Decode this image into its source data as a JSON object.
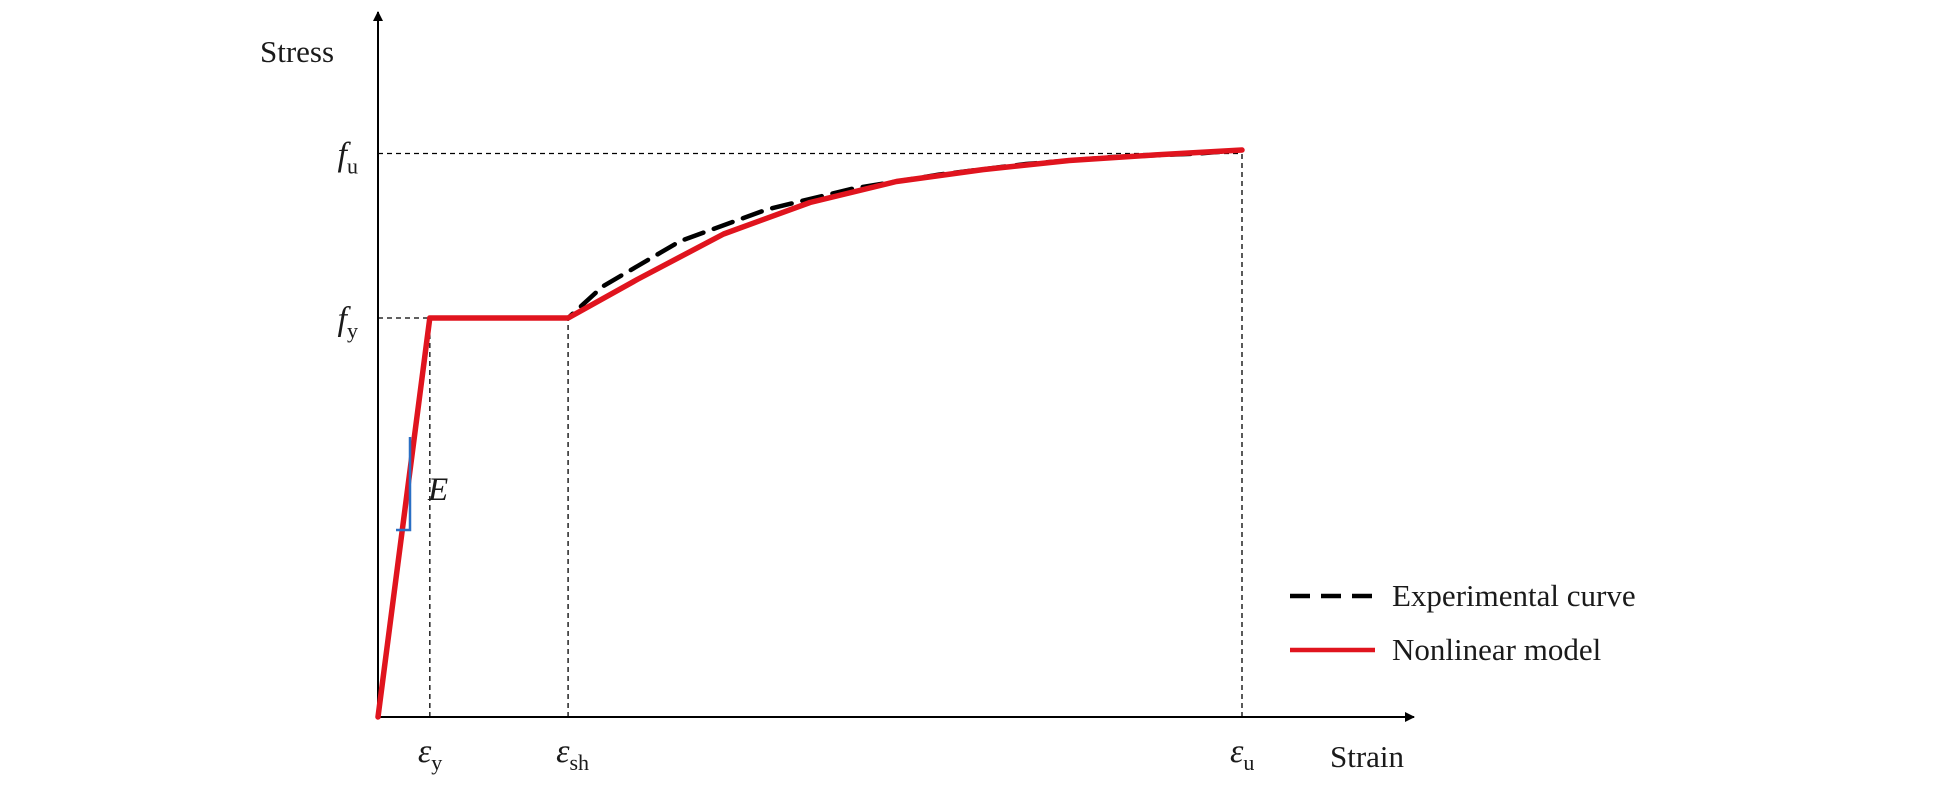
{
  "chart_data": {
    "type": "line",
    "title": "",
    "xlabel": "Strain",
    "ylabel": "Stress",
    "grid": false,
    "legend_position": "right",
    "y_ticks": [
      {
        "main": "f",
        "sub": "y",
        "value": 0.57
      },
      {
        "main": "f",
        "sub": "u",
        "value": 0.805
      }
    ],
    "x_ticks": [
      {
        "main": "ε",
        "sub": "y",
        "value": 0.06
      },
      {
        "main": "ε",
        "sub": "sh",
        "value": 0.22
      },
      {
        "main": "ε",
        "sub": "u",
        "value": 1.0
      }
    ],
    "slope_label": "E",
    "xlim": [
      0,
      1.2
    ],
    "ylim": [
      0,
      1.0
    ],
    "series": [
      {
        "name": "Experimental curve",
        "style": "dashed",
        "color": "#000000",
        "x": [
          0,
          0.06,
          0.22,
          0.26,
          0.35,
          0.45,
          0.55,
          0.65,
          0.75,
          0.85,
          0.95,
          1.0
        ],
        "y": [
          0,
          0.57,
          0.57,
          0.615,
          0.68,
          0.725,
          0.755,
          0.775,
          0.79,
          0.8,
          0.805,
          0.81
        ]
      },
      {
        "name": "Nonlinear model",
        "style": "solid",
        "color": "#e0141e",
        "x": [
          0,
          0.06,
          0.22,
          0.3,
          0.4,
          0.5,
          0.6,
          0.7,
          0.8,
          0.9,
          1.0
        ],
        "y": [
          0,
          0.57,
          0.57,
          0.625,
          0.69,
          0.735,
          0.765,
          0.782,
          0.795,
          0.803,
          0.81
        ]
      }
    ]
  }
}
